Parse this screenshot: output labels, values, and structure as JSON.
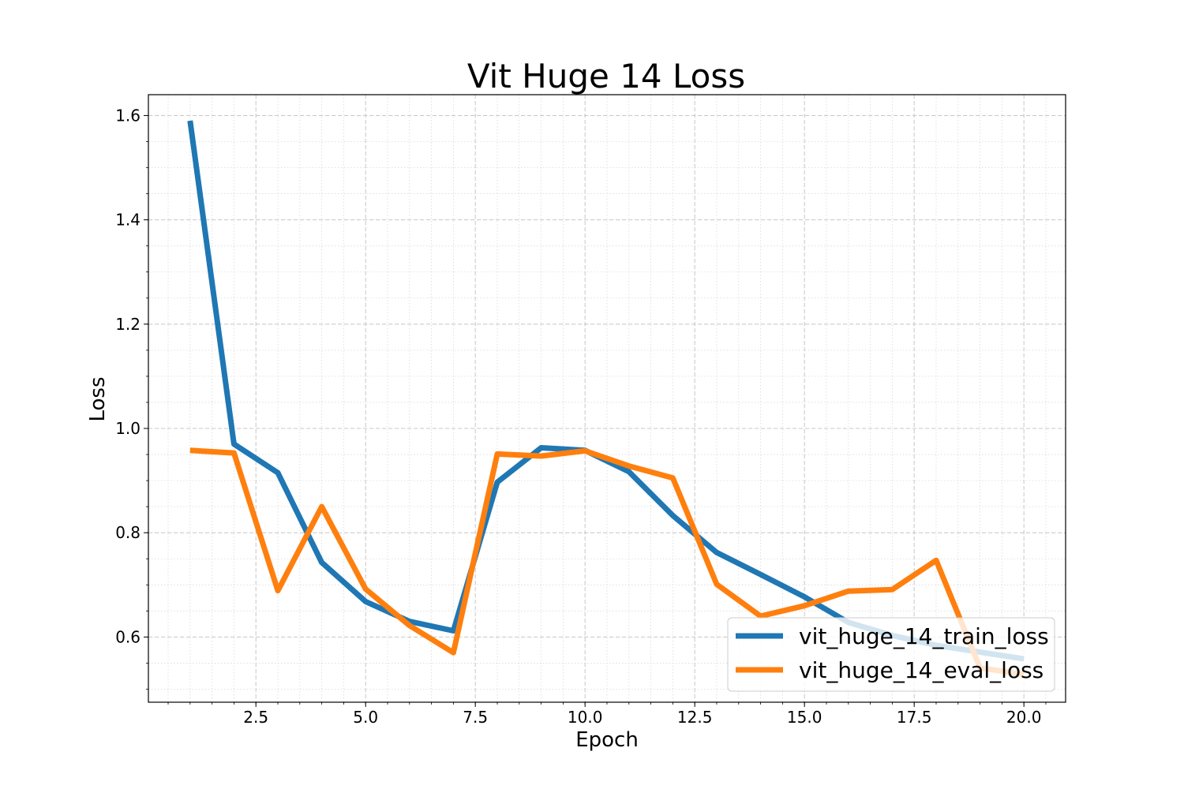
{
  "chart_data": {
    "type": "line",
    "title": "Vit Huge 14 Loss",
    "xlabel": "Epoch",
    "ylabel": "Loss",
    "xlim": [
      0.05,
      20.95
    ],
    "ylim": [
      0.475,
      1.64
    ],
    "xticks": [
      2.5,
      5.0,
      7.5,
      10.0,
      12.5,
      15.0,
      17.5,
      20.0
    ],
    "xtick_labels": [
      "2.5",
      "5.0",
      "7.5",
      "10.0",
      "12.5",
      "15.0",
      "17.5",
      "20.0"
    ],
    "yticks": [
      0.6,
      0.8,
      1.0,
      1.2,
      1.4,
      1.6
    ],
    "ytick_labels": [
      "0.6",
      "0.8",
      "1.0",
      "1.2",
      "1.4",
      "1.6"
    ],
    "grid": true,
    "legend_position": "lower-right",
    "x": [
      1,
      2,
      3,
      4,
      5,
      6,
      7,
      8,
      9,
      10,
      11,
      12,
      13,
      14,
      15,
      16,
      17,
      18,
      19,
      20
    ],
    "series": [
      {
        "name": "vit_huge_14_train_loss",
        "color": "#1f77b4",
        "values": [
          1.59,
          0.97,
          0.915,
          0.743,
          0.668,
          0.63,
          0.612,
          0.897,
          0.963,
          0.958,
          0.917,
          0.833,
          0.762,
          0.72,
          0.677,
          0.628,
          0.603,
          0.584,
          0.571,
          0.558
        ]
      },
      {
        "name": "vit_huge_14_eval_loss",
        "color": "#ff7f0e",
        "values": [
          0.958,
          0.953,
          0.689,
          0.85,
          0.692,
          0.622,
          0.57,
          0.951,
          0.947,
          0.957,
          0.928,
          0.905,
          0.701,
          0.64,
          0.66,
          0.688,
          0.691,
          0.747,
          0.541,
          0.528
        ]
      }
    ]
  }
}
